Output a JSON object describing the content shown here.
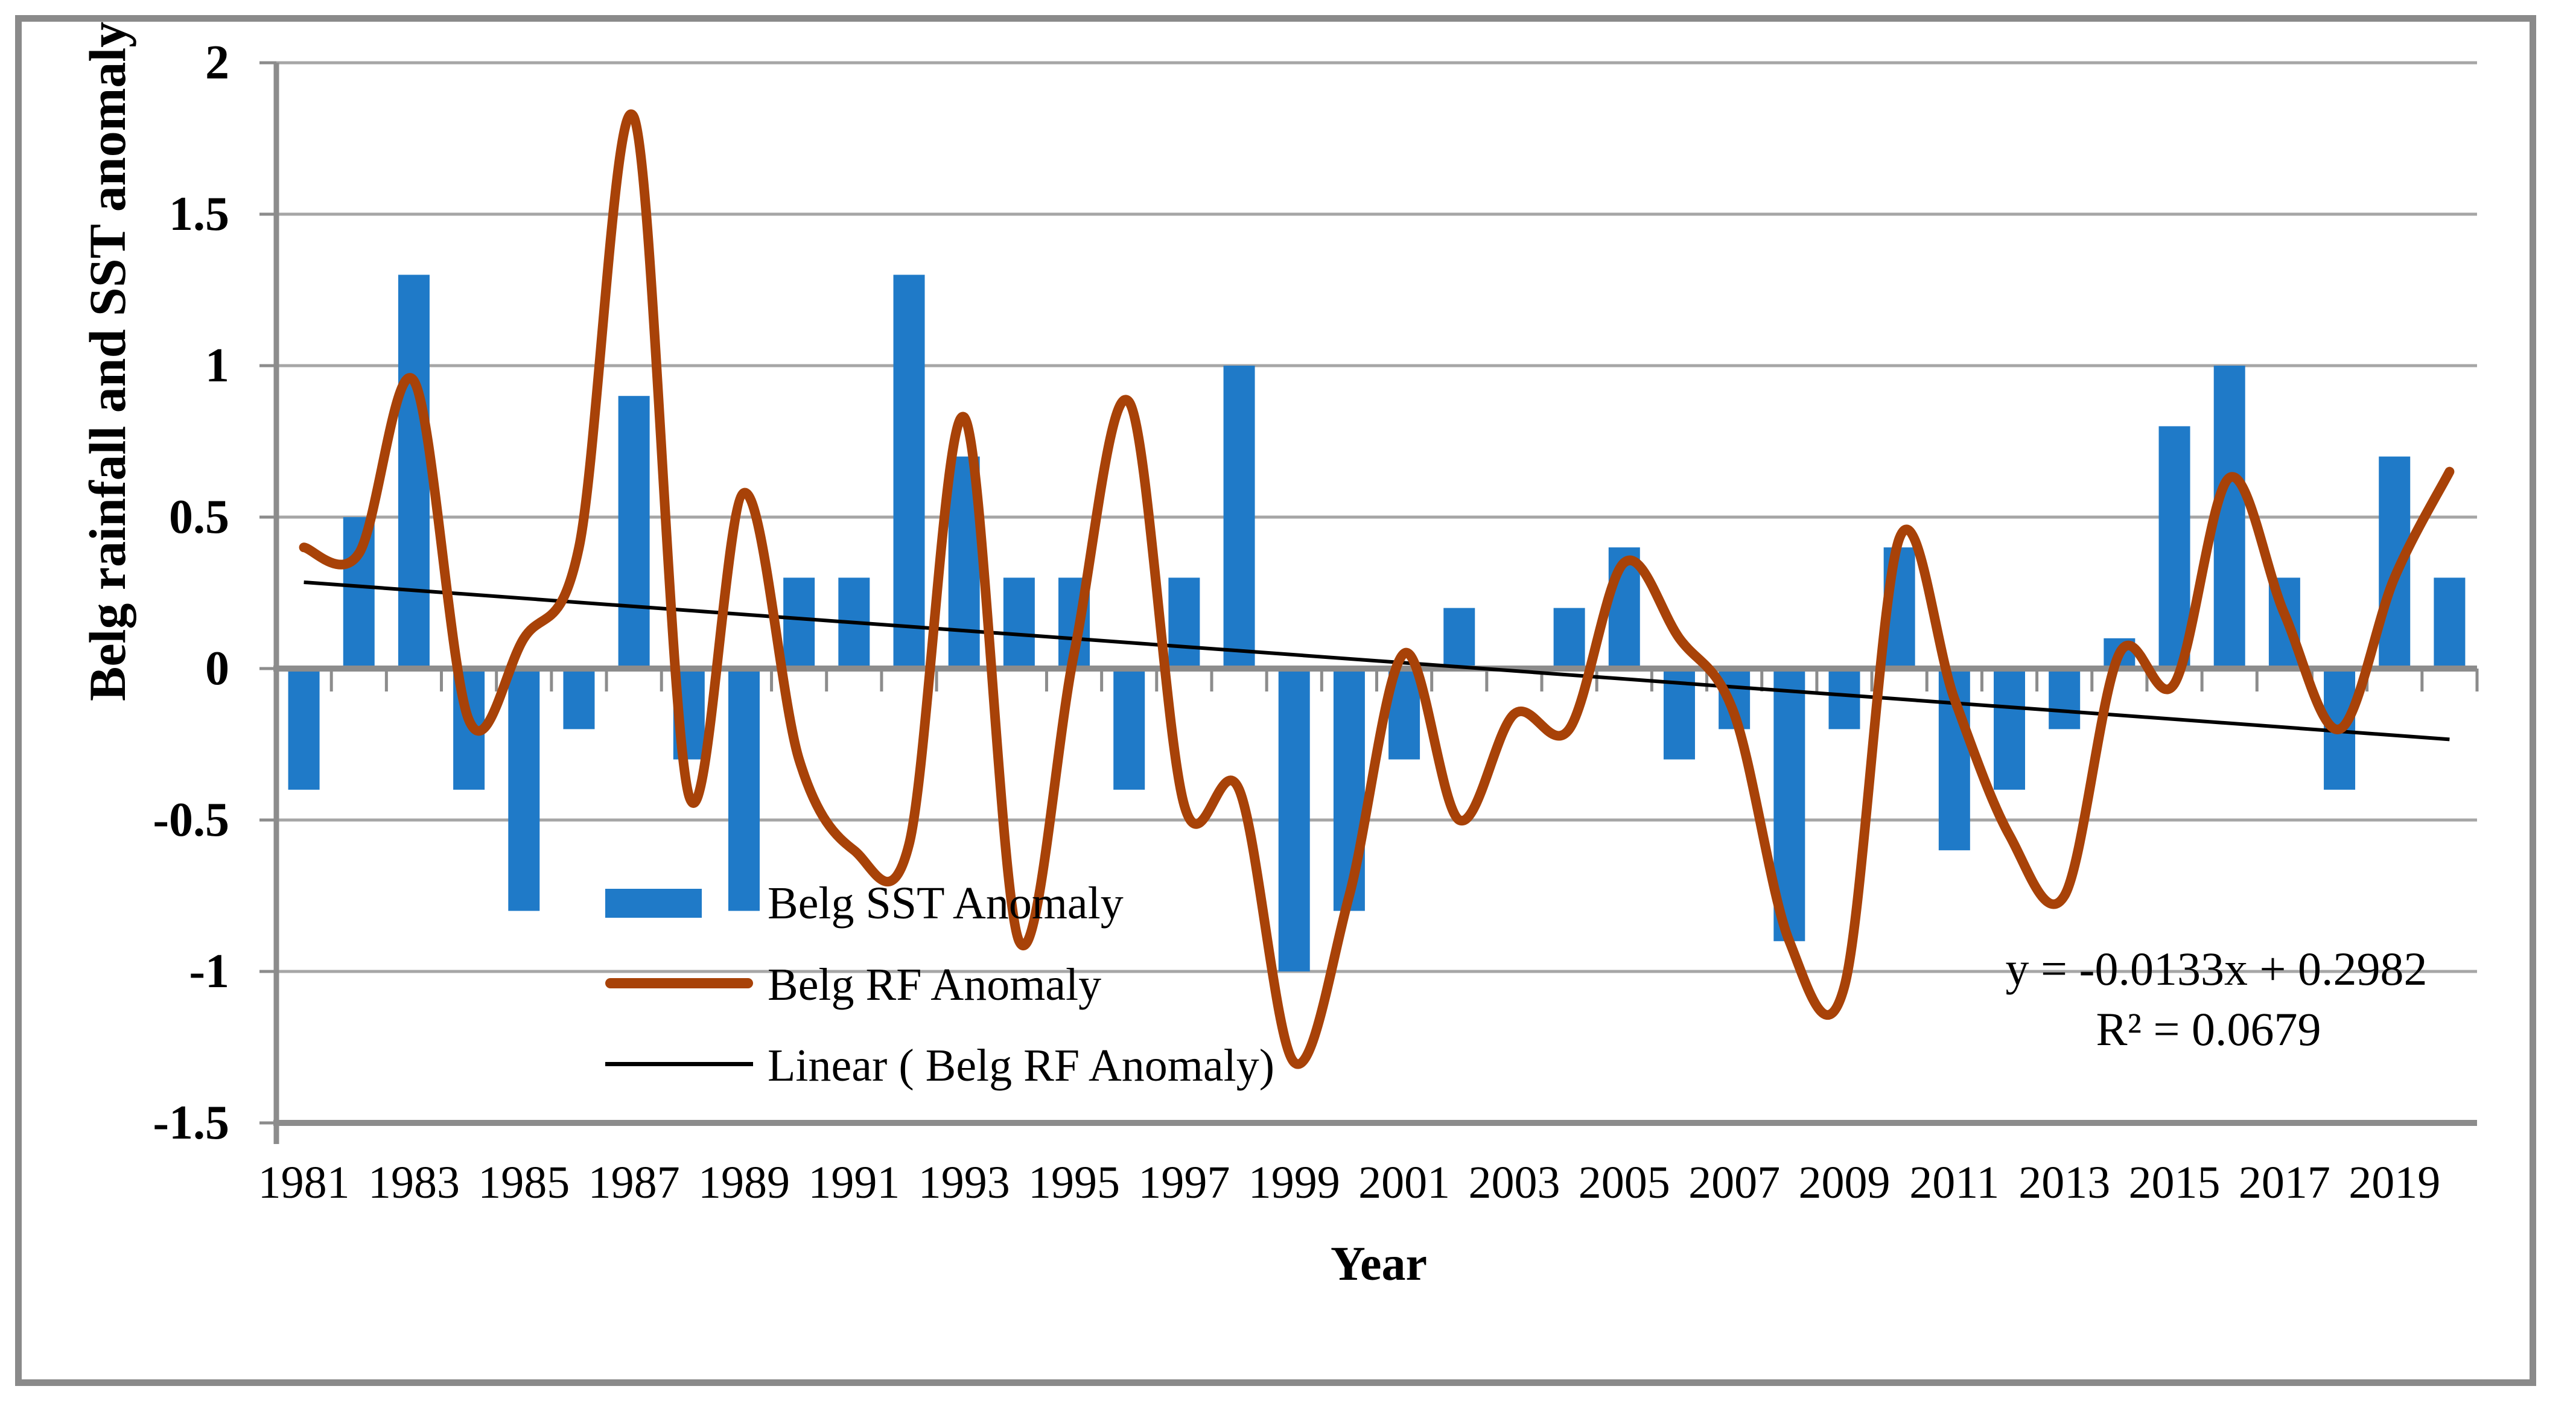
{
  "figure": {
    "background": "#ffffff",
    "border_color": "#8a8a8a",
    "gridline_color": "#a6a6a6",
    "axis_color": "#8c8c8c"
  },
  "chart_data": {
    "type": "bar",
    "subtype": "combo-bar-smoothline-trend",
    "title": "",
    "xlabel": "Year",
    "ylabel": "Belg rainfall and SST anomaly",
    "ylim": [
      -1.5,
      2
    ],
    "ytick_step": 0.5,
    "ytick_labels": [
      "2",
      "1.5",
      "1",
      "0.5",
      "0",
      "-0.5",
      "-1",
      "-1.5"
    ],
    "ytick_values": [
      2,
      1.5,
      1,
      0.5,
      0,
      -0.5,
      -1,
      -1.5
    ],
    "xtick_labels": [
      "1981",
      "1983",
      "1985",
      "1987",
      "1989",
      "1991",
      "1993",
      "1995",
      "1997",
      "1999",
      "2001",
      "2003",
      "2005",
      "2007",
      "2009",
      "2011",
      "2013",
      "2015",
      "2017",
      "2019"
    ],
    "categories": [
      1981,
      1982,
      1983,
      1984,
      1985,
      1986,
      1987,
      1988,
      1989,
      1990,
      1991,
      1992,
      1993,
      1994,
      1995,
      1996,
      1997,
      1998,
      1999,
      2000,
      2001,
      2002,
      2003,
      2004,
      2005,
      2006,
      2007,
      2008,
      2009,
      2010,
      2011,
      2012,
      2013,
      2014,
      2015,
      2016,
      2017,
      2018,
      2019,
      2020
    ],
    "grid": true,
    "legend_position": "inside-bottom-left",
    "series": [
      {
        "name": "Belg SST Anomaly",
        "type": "bar",
        "color": "#1f7ac8",
        "values": [
          -0.4,
          0.5,
          1.3,
          -0.4,
          -0.8,
          -0.2,
          0.9,
          -0.3,
          -0.8,
          0.3,
          0.3,
          1.3,
          0.7,
          0.3,
          0.3,
          -0.4,
          0.3,
          1.0,
          -1.0,
          -0.8,
          -0.3,
          0.2,
          0.0,
          0.2,
          0.4,
          -0.3,
          -0.2,
          -0.9,
          -0.2,
          0.4,
          -0.6,
          -0.4,
          -0.2,
          0.1,
          0.8,
          1.0,
          0.3,
          -0.4,
          0.7,
          0.3
        ]
      },
      {
        "name": "Belg RF Anomaly",
        "type": "smooth-line",
        "color": "#a84208",
        "values": [
          0.4,
          0.38,
          0.95,
          -0.17,
          0.1,
          0.4,
          1.82,
          -0.42,
          0.58,
          -0.3,
          -0.6,
          -0.58,
          0.83,
          -0.9,
          0.05,
          0.88,
          -0.45,
          -0.4,
          -1.3,
          -0.75,
          0.05,
          -0.5,
          -0.15,
          -0.2,
          0.35,
          0.1,
          -0.15,
          -0.9,
          -1.05,
          0.43,
          -0.1,
          -0.55,
          -0.75,
          0.05,
          -0.05,
          0.63,
          0.18,
          -0.2,
          0.3,
          0.65
        ]
      },
      {
        "name": "Linear ( Belg RF Anomaly)",
        "type": "linear-trend",
        "color": "#000000",
        "slope": -0.0133,
        "intercept": 0.2982
      }
    ],
    "trend_equation": "y = -0.0133x + 0.2982",
    "trend_r_squared": "R² = 0.0679"
  },
  "legend": {
    "items": [
      {
        "label": "Belg SST Anomaly"
      },
      {
        "label": "Belg RF Anomaly"
      },
      {
        "label": "Linear ( Belg RF Anomaly)"
      }
    ]
  },
  "annotation": {
    "equation_line": "y = -0.0133x + 0.2982",
    "r2_line": "R² = 0.0679"
  },
  "axes": {
    "y_title": "Belg rainfall and SST anomaly",
    "x_title": "Year"
  }
}
